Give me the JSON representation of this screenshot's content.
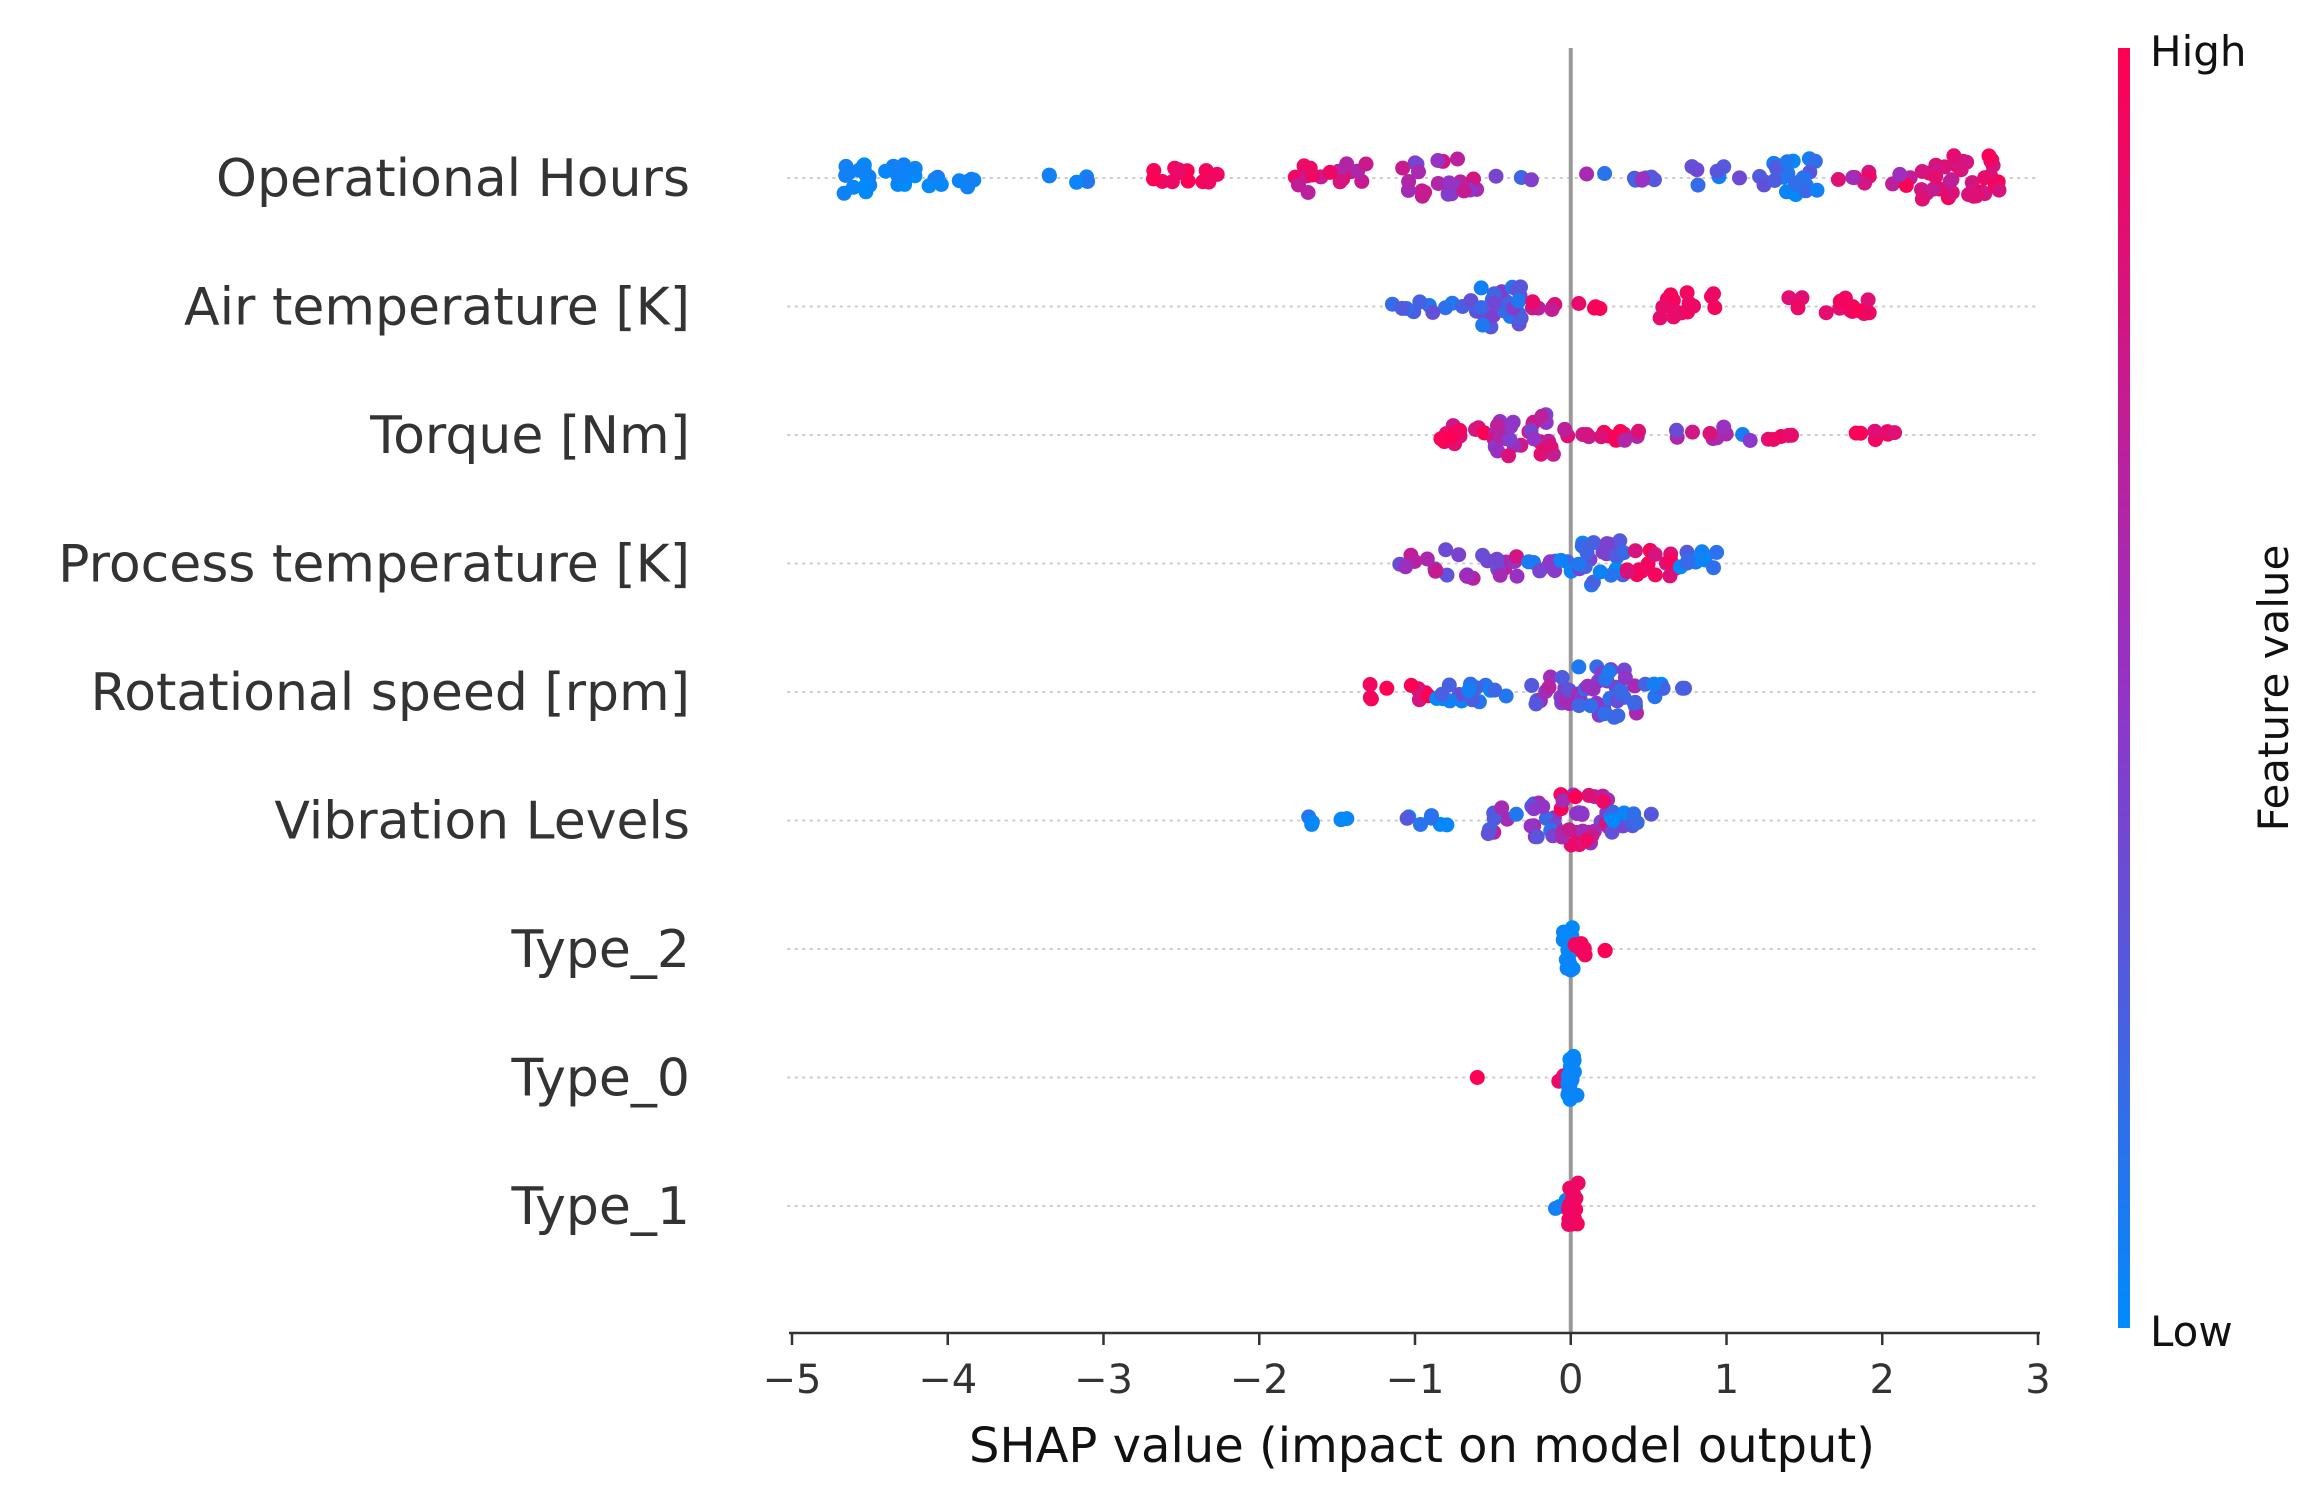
{
  "chart_data": {
    "type": "scatter",
    "subtype": "shap-beeswarm-summary",
    "xlabel": "SHAP value (impact on model output)",
    "xlim": [
      -5,
      3
    ],
    "xticks": [
      -5,
      -4,
      -3,
      -2,
      -1,
      0,
      1,
      2,
      3
    ],
    "xtick_labels": [
      "−5",
      "−4",
      "−3",
      "−2",
      "−1",
      "0",
      "1",
      "2",
      "3"
    ],
    "zero_line": 0,
    "colorbar": {
      "title": "Feature value",
      "high_label": "High",
      "low_label": "Low",
      "low_color": "#008bfb",
      "high_color": "#ff0052",
      "mid_color": "#9433c6"
    },
    "features": [
      {
        "name": "Operational Hours",
        "clusters": [
          {
            "x": [
              -4.7,
              -4.5
            ],
            "n": 16,
            "c": [
              0.0,
              0.08
            ],
            "h": 2.0
          },
          {
            "x": [
              -4.4,
              -4.2
            ],
            "n": 12,
            "c": [
              0.0,
              0.08
            ],
            "h": 1.6
          },
          {
            "x": [
              -4.15,
              -3.8
            ],
            "n": 9,
            "c": [
              0.0,
              0.1
            ],
            "h": 0.9
          },
          {
            "x": [
              -3.35,
              -3.05
            ],
            "n": 5,
            "c": [
              0.0,
              0.12
            ],
            "h": 0.6
          },
          {
            "x": [
              -2.75,
              -2.15
            ],
            "n": 14,
            "c": [
              0.88,
              1.0
            ],
            "h": 1.0
          },
          {
            "x": [
              -1.9,
              -1.3
            ],
            "n": 18,
            "c": [
              0.6,
              0.95
            ],
            "h": 1.5
          },
          {
            "x": [
              -1.1,
              -0.6
            ],
            "n": 22,
            "c": [
              0.35,
              0.85
            ],
            "h": 2.0
          },
          {
            "x": [
              -0.55,
              -0.25
            ],
            "n": 3,
            "c": [
              0.2,
              0.5
            ],
            "h": 0.3
          },
          {
            "x": [
              0.1,
              0.55
            ],
            "n": 9,
            "c": [
              0.05,
              0.6
            ],
            "h": 0.5
          },
          {
            "x": [
              0.75,
              1.25
            ],
            "n": 10,
            "c": [
              0.05,
              0.4
            ],
            "h": 1.2
          },
          {
            "x": [
              1.3,
              1.6
            ],
            "n": 22,
            "c": [
              0.0,
              0.3
            ],
            "h": 2.0
          },
          {
            "x": [
              1.65,
              2.2
            ],
            "n": 10,
            "c": [
              0.5,
              1.0
            ],
            "h": 0.8
          },
          {
            "x": [
              2.25,
              2.5
            ],
            "n": 18,
            "c": [
              0.7,
              1.0
            ],
            "h": 2.3
          },
          {
            "x": [
              2.5,
              2.75
            ],
            "n": 20,
            "c": [
              0.75,
              1.0
            ],
            "h": 2.3
          }
        ]
      },
      {
        "name": "Air temperature [K]",
        "clusters": [
          {
            "x": [
              -1.15,
              -0.6
            ],
            "n": 12,
            "c": [
              0.0,
              0.35
            ],
            "h": 0.6
          },
          {
            "x": [
              -0.6,
              -0.3
            ],
            "n": 24,
            "c": [
              0.0,
              0.45
            ],
            "h": 2.2
          },
          {
            "x": [
              -0.3,
              -0.05
            ],
            "n": 6,
            "c": [
              0.6,
              0.9
            ],
            "h": 0.5
          },
          {
            "x": [
              0.05,
              0.2
            ],
            "n": 4,
            "c": [
              0.8,
              1.0
            ],
            "h": 0.3
          },
          {
            "x": [
              0.55,
              0.95
            ],
            "n": 16,
            "c": [
              0.88,
              1.0
            ],
            "h": 1.5
          },
          {
            "x": [
              1.4,
              2.1
            ],
            "n": 14,
            "c": [
              0.85,
              1.0
            ],
            "h": 0.9
          }
        ]
      },
      {
        "name": "Torque [Nm]",
        "clusters": [
          {
            "x": [
              -0.85,
              -0.5
            ],
            "n": 12,
            "c": [
              0.75,
              1.0
            ],
            "h": 1.1
          },
          {
            "x": [
              -0.5,
              -0.1
            ],
            "n": 28,
            "c": [
              0.4,
              0.95
            ],
            "h": 2.1
          },
          {
            "x": [
              -0.1,
              0.45
            ],
            "n": 14,
            "c": [
              0.6,
              1.0
            ],
            "h": 0.6
          },
          {
            "x": [
              0.65,
              1.2
            ],
            "n": 10,
            "c": [
              0.05,
              0.9
            ],
            "h": 0.8
          },
          {
            "x": [
              1.25,
              1.5
            ],
            "n": 5,
            "c": [
              0.8,
              1.0
            ],
            "h": 0.5
          },
          {
            "x": [
              1.8,
              2.1
            ],
            "n": 8,
            "c": [
              0.85,
              1.0
            ],
            "h": 0.7
          }
        ]
      },
      {
        "name": "Process temperature [K]",
        "clusters": [
          {
            "x": [
              -1.1,
              -0.3
            ],
            "n": 26,
            "c": [
              0.3,
              0.8
            ],
            "h": 1.6
          },
          {
            "x": [
              -0.3,
              0.05
            ],
            "n": 10,
            "c": [
              0.0,
              0.5
            ],
            "h": 0.9
          },
          {
            "x": [
              0.05,
              0.35
            ],
            "n": 24,
            "c": [
              0.0,
              0.45
            ],
            "h": 2.3
          },
          {
            "x": [
              0.35,
              0.7
            ],
            "n": 16,
            "c": [
              0.8,
              1.0
            ],
            "h": 1.4
          },
          {
            "x": [
              0.7,
              0.95
            ],
            "n": 10,
            "c": [
              0.0,
              0.3
            ],
            "h": 1.2
          }
        ]
      },
      {
        "name": "Rotational speed [rpm]",
        "clusters": [
          {
            "x": [
              -1.35,
              -0.9
            ],
            "n": 10,
            "c": [
              0.75,
              1.0
            ],
            "h": 0.8
          },
          {
            "x": [
              -0.9,
              -0.25
            ],
            "n": 18,
            "c": [
              0.0,
              0.35
            ],
            "h": 1.0
          },
          {
            "x": [
              -0.3,
              0.05
            ],
            "n": 16,
            "c": [
              0.2,
              0.7
            ],
            "h": 1.5
          },
          {
            "x": [
              0.05,
              0.5
            ],
            "n": 36,
            "c": [
              0.0,
              0.6
            ],
            "h": 2.6
          },
          {
            "x": [
              0.5,
              0.75
            ],
            "n": 6,
            "c": [
              0.0,
              0.3
            ],
            "h": 1.0
          }
        ]
      },
      {
        "name": "Vibration Levels",
        "clusters": [
          {
            "x": [
              -1.7,
              -1.4
            ],
            "n": 6,
            "c": [
              0.0,
              0.15
            ],
            "h": 0.5
          },
          {
            "x": [
              -1.1,
              -0.75
            ],
            "n": 7,
            "c": [
              0.0,
              0.3
            ],
            "h": 0.5
          },
          {
            "x": [
              -0.55,
              -0.1
            ],
            "n": 22,
            "c": [
              0.1,
              0.7
            ],
            "h": 1.8
          },
          {
            "x": [
              -0.1,
              0.25
            ],
            "n": 34,
            "c": [
              0.4,
              1.0
            ],
            "h": 2.6
          },
          {
            "x": [
              0.25,
              0.55
            ],
            "n": 12,
            "c": [
              0.0,
              0.45
            ],
            "h": 1.2
          }
        ]
      },
      {
        "name": "Type_2",
        "clusters": [
          {
            "x": [
              -0.05,
              0.02
            ],
            "n": 18,
            "c": [
              0.0,
              0.05
            ],
            "h": 2.2
          },
          {
            "x": [
              0.02,
              0.1
            ],
            "n": 6,
            "c": [
              0.9,
              1.0
            ],
            "h": 1.0
          },
          {
            "x": [
              0.15,
              0.23
            ],
            "n": 2,
            "c": [
              0.9,
              1.0
            ],
            "h": 0.2
          }
        ]
      },
      {
        "name": "Type_0",
        "clusters": [
          {
            "x": [
              -0.6,
              -0.6
            ],
            "n": 1,
            "c": [
              1.0,
              1.0
            ],
            "h": 0.0
          },
          {
            "x": [
              -0.1,
              -0.03
            ],
            "n": 4,
            "c": [
              0.9,
              1.0
            ],
            "h": 0.5
          },
          {
            "x": [
              -0.02,
              0.04
            ],
            "n": 20,
            "c": [
              0.0,
              0.05
            ],
            "h": 2.3
          }
        ]
      },
      {
        "name": "Type_1",
        "clusters": [
          {
            "x": [
              -0.1,
              -0.02
            ],
            "n": 5,
            "c": [
              0.0,
              0.1
            ],
            "h": 0.7
          },
          {
            "x": [
              -0.02,
              0.05
            ],
            "n": 20,
            "c": [
              0.9,
              1.0
            ],
            "h": 2.3
          }
        ]
      }
    ]
  }
}
